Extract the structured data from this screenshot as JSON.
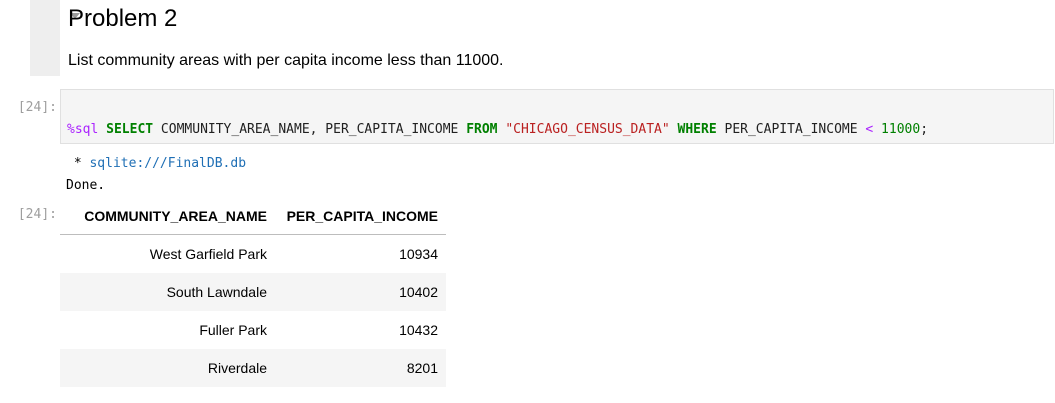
{
  "markdown_cell": {
    "heading": "Problem 2",
    "text": "List community areas with per capita income less than 11000."
  },
  "code_cell": {
    "prompt_in": "[24]:",
    "prompt_out": "[24]:",
    "code_tokens": [
      {
        "text": "%sql",
        "kind": "magic"
      },
      {
        "text": " ",
        "kind": "plain"
      },
      {
        "text": "SELECT",
        "kind": "kw"
      },
      {
        "text": " COMMUNITY_AREA_NAME, PER_CAPITA_INCOME ",
        "kind": "plain"
      },
      {
        "text": "FROM",
        "kind": "kw"
      },
      {
        "text": " ",
        "kind": "plain"
      },
      {
        "text": "\"CHICAGO_CENSUS_DATA\"",
        "kind": "str"
      },
      {
        "text": " ",
        "kind": "plain"
      },
      {
        "text": "WHERE",
        "kind": "kw"
      },
      {
        "text": " PER_CAPITA_INCOME ",
        "kind": "plain"
      },
      {
        "text": "<",
        "kind": "op"
      },
      {
        "text": " ",
        "kind": "plain"
      },
      {
        "text": "11000",
        "kind": "num"
      },
      {
        "text": ";",
        "kind": "plain"
      }
    ],
    "stream": {
      "prefix": " * ",
      "connection": "sqlite:///FinalDB.db",
      "done": "Done."
    }
  },
  "result_table": {
    "columns": [
      "COMMUNITY_AREA_NAME",
      "PER_CAPITA_INCOME"
    ],
    "rows": [
      [
        "West Garfield Park",
        "10934"
      ],
      [
        "South Lawndale",
        "10402"
      ],
      [
        "Fuller Park",
        "10432"
      ],
      [
        "Riverdale",
        "8201"
      ]
    ]
  },
  "colors": {
    "keyword": "#008000",
    "string": "#ba2121",
    "magic": "#aa22ff",
    "link": "#1f6fb5",
    "prompt": "#9e9e9e"
  }
}
